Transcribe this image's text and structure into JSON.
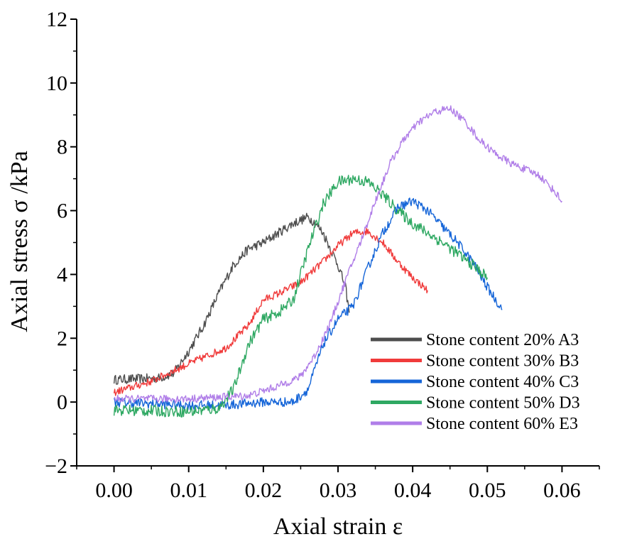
{
  "chart_data": {
    "type": "line",
    "title": "",
    "xlabel": "Axial strain ε",
    "ylabel": "Axial stress σ /kPa",
    "xlim": [
      -0.005,
      0.065
    ],
    "ylim": [
      -2,
      12
    ],
    "x_ticks": [
      0.0,
      0.01,
      0.02,
      0.03,
      0.04,
      0.05,
      0.06
    ],
    "x_tick_labels": [
      "0.00",
      "0.01",
      "0.02",
      "0.03",
      "0.04",
      "0.05",
      "0.06"
    ],
    "y_ticks": [
      -2,
      0,
      2,
      4,
      6,
      8,
      10,
      12
    ],
    "y_tick_labels": [
      "−2",
      "0",
      "2",
      "4",
      "6",
      "8",
      "10",
      "12"
    ],
    "grid": false,
    "legend_position": "bottom-right",
    "series": [
      {
        "name": "Stone content 20% A3",
        "color": "#4d4d4d",
        "noise": 0.15,
        "points": [
          [
            0.0,
            0.7
          ],
          [
            0.006,
            0.75
          ],
          [
            0.008,
            0.9
          ],
          [
            0.01,
            1.6
          ],
          [
            0.012,
            2.4
          ],
          [
            0.014,
            3.4
          ],
          [
            0.016,
            4.3
          ],
          [
            0.018,
            4.8
          ],
          [
            0.02,
            5.0
          ],
          [
            0.022,
            5.3
          ],
          [
            0.024,
            5.6
          ],
          [
            0.026,
            5.8
          ],
          [
            0.027,
            5.6
          ],
          [
            0.028,
            5.3
          ],
          [
            0.03,
            4.3
          ],
          [
            0.031,
            3.6
          ],
          [
            0.0315,
            2.8
          ]
        ]
      },
      {
        "name": "Stone content 30% B3",
        "color": "#f03b3b",
        "noise": 0.12,
        "points": [
          [
            0.0,
            0.3
          ],
          [
            0.005,
            0.65
          ],
          [
            0.01,
            1.2
          ],
          [
            0.015,
            1.7
          ],
          [
            0.018,
            2.4
          ],
          [
            0.02,
            3.2
          ],
          [
            0.022,
            3.4
          ],
          [
            0.025,
            3.75
          ],
          [
            0.028,
            4.4
          ],
          [
            0.03,
            4.9
          ],
          [
            0.032,
            5.3
          ],
          [
            0.034,
            5.35
          ],
          [
            0.036,
            5.0
          ],
          [
            0.038,
            4.4
          ],
          [
            0.04,
            3.9
          ],
          [
            0.042,
            3.5
          ]
        ]
      },
      {
        "name": "Stone content 40% C3",
        "color": "#1565d8",
        "noise": 0.15,
        "points": [
          [
            0.0,
            0.0
          ],
          [
            0.01,
            -0.1
          ],
          [
            0.015,
            -0.1
          ],
          [
            0.02,
            0.0
          ],
          [
            0.024,
            0.0
          ],
          [
            0.026,
            0.4
          ],
          [
            0.028,
            1.8
          ],
          [
            0.03,
            2.6
          ],
          [
            0.032,
            3.0
          ],
          [
            0.034,
            4.2
          ],
          [
            0.036,
            5.3
          ],
          [
            0.038,
            6.1
          ],
          [
            0.04,
            6.3
          ],
          [
            0.042,
            6.0
          ],
          [
            0.044,
            5.5
          ],
          [
            0.046,
            5.0
          ],
          [
            0.048,
            4.4
          ],
          [
            0.05,
            3.6
          ],
          [
            0.052,
            2.9
          ]
        ]
      },
      {
        "name": "Stone content 50% D3",
        "color": "#2ea862",
        "noise": 0.18,
        "points": [
          [
            0.0,
            -0.25
          ],
          [
            0.01,
            -0.3
          ],
          [
            0.014,
            -0.2
          ],
          [
            0.016,
            0.4
          ],
          [
            0.018,
            1.8
          ],
          [
            0.02,
            2.6
          ],
          [
            0.022,
            2.8
          ],
          [
            0.024,
            3.2
          ],
          [
            0.026,
            4.8
          ],
          [
            0.028,
            6.2
          ],
          [
            0.03,
            6.9
          ],
          [
            0.032,
            7.0
          ],
          [
            0.034,
            6.9
          ],
          [
            0.036,
            6.5
          ],
          [
            0.038,
            6.0
          ],
          [
            0.04,
            5.6
          ],
          [
            0.044,
            5.0
          ],
          [
            0.048,
            4.3
          ],
          [
            0.05,
            3.9
          ]
        ]
      },
      {
        "name": "Stone content 60% E3",
        "color": "#b07ee8",
        "noise": 0.12,
        "points": [
          [
            0.0,
            0.1
          ],
          [
            0.01,
            0.1
          ],
          [
            0.018,
            0.2
          ],
          [
            0.022,
            0.5
          ],
          [
            0.025,
            0.8
          ],
          [
            0.027,
            1.5
          ],
          [
            0.029,
            2.5
          ],
          [
            0.031,
            3.8
          ],
          [
            0.033,
            5.0
          ],
          [
            0.035,
            6.3
          ],
          [
            0.037,
            7.5
          ],
          [
            0.039,
            8.3
          ],
          [
            0.041,
            8.8
          ],
          [
            0.043,
            9.1
          ],
          [
            0.045,
            9.2
          ],
          [
            0.047,
            8.8
          ],
          [
            0.049,
            8.2
          ],
          [
            0.051,
            7.8
          ],
          [
            0.053,
            7.5
          ],
          [
            0.055,
            7.3
          ],
          [
            0.057,
            7.1
          ],
          [
            0.059,
            6.6
          ],
          [
            0.06,
            6.3
          ]
        ]
      }
    ]
  }
}
